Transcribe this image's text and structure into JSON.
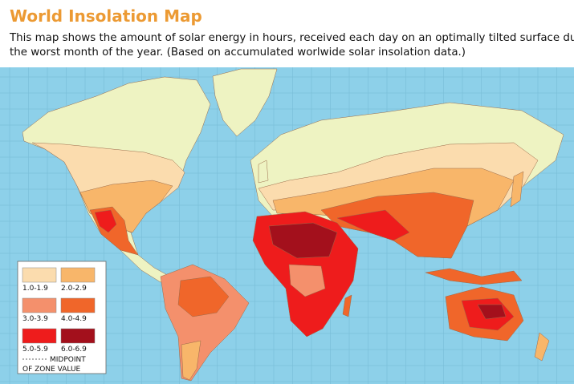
{
  "header": {
    "title": "World Insolation Map",
    "description": [
      "This map shows the amount of solar energy in hours, received each day on an optimally tilted surface during",
      "the worst month of the year. (Based on accumulated worlwide solar insolation data.)"
    ]
  },
  "legend": {
    "items": [
      {
        "label": "1.0-1.9",
        "color": "#fbdcae"
      },
      {
        "label": "2.0-2.9",
        "color": "#f8b66a"
      },
      {
        "label": "3.0-3.9",
        "color": "#f4906c"
      },
      {
        "label": "4.0-4.9",
        "color": "#f0662a"
      },
      {
        "label": "5.0-5.9",
        "color": "#ee1c1c"
      },
      {
        "label": "6.0-6.9",
        "color": "#a3101c"
      }
    ],
    "midpoint_note": [
      "MIDPOINT",
      "OF ZONE VALUE"
    ]
  }
}
